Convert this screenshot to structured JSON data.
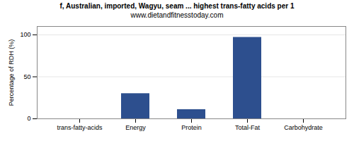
{
  "chart_data": {
    "type": "bar",
    "title": "f, Australian, imported, Wagyu, seam ... highest trans-fatty acids per 1",
    "subtitle": "www.dietandfitnesstoday.com",
    "categories": [
      "trans-fatty-acids",
      "Energy",
      "Protein",
      "Total-Fat",
      "Carbohydrate"
    ],
    "values": [
      0,
      30,
      11,
      97,
      0
    ],
    "color": "#2d4f8e",
    "ylabel": "Percentage of RDH (%)",
    "ylim": [
      0,
      110
    ],
    "yticks": [
      0,
      50,
      100
    ],
    "grid": true
  }
}
